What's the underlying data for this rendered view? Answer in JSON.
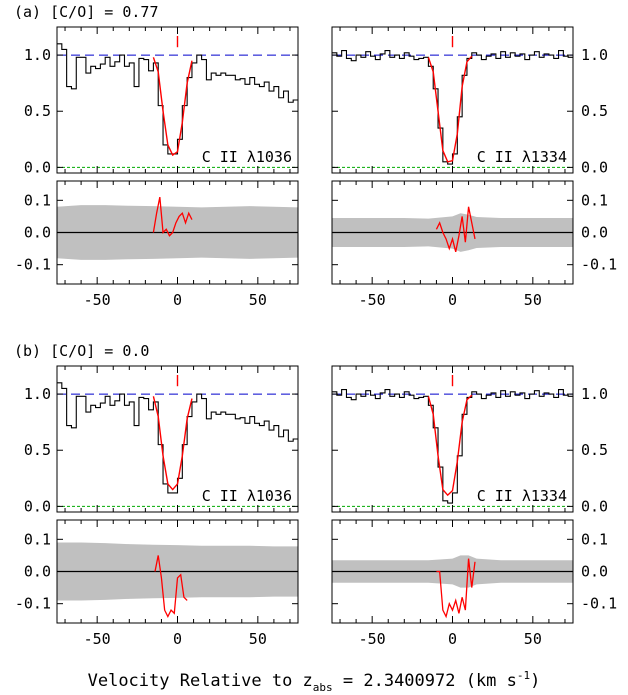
{
  "figure": {
    "xlabel_main": "Velocity Relative to z",
    "xlabel_sub": "abs",
    "xlabel_tail": " = 2.3400972 (km s",
    "xlabel_sup": "-1",
    "xlabel_close": ")",
    "colors": {
      "data": "#000000",
      "model": "#ff0000",
      "continuum": "#0000cc",
      "zero_level": "#00aa00",
      "error_band": "#c0c0c0"
    }
  },
  "chart_data": [
    {
      "id": "a",
      "label": "(a) [C/O] = 0.77",
      "panels": [
        {
          "type": "line",
          "kind": "spectrum",
          "line_label": "C II λ1036",
          "xlim": [
            -75,
            75
          ],
          "ylim": [
            -0.05,
            1.25
          ],
          "yticks": [
            0.0,
            0.5,
            1.0
          ],
          "ytick_labels": [
            "0.0",
            "0.5",
            "1.0"
          ],
          "ytick_side": "left",
          "x_step": [
            -75,
            -72,
            -69,
            -66,
            -63,
            -60,
            -57,
            -54,
            -51,
            -48,
            -45,
            -42,
            -39,
            -36,
            -33,
            -30,
            -27,
            -24,
            -21,
            -18,
            -15,
            -12,
            -9,
            -6,
            -3,
            0,
            3,
            6,
            9,
            12,
            15,
            18,
            21,
            24,
            27,
            30,
            33,
            36,
            39,
            42,
            45,
            48,
            51,
            54,
            57,
            60,
            63,
            66,
            69,
            72,
            75
          ],
          "flux": [
            1.1,
            1.05,
            0.72,
            0.7,
            0.98,
            0.98,
            0.84,
            0.9,
            0.88,
            0.92,
            0.98,
            0.9,
            0.94,
            1.0,
            0.9,
            0.93,
            0.72,
            0.97,
            0.96,
            0.86,
            0.93,
            0.55,
            0.2,
            0.12,
            0.12,
            0.25,
            0.55,
            0.8,
            0.93,
            1.0,
            0.96,
            0.78,
            0.84,
            0.82,
            0.84,
            0.82,
            0.82,
            0.78,
            0.79,
            0.74,
            0.8,
            0.74,
            0.72,
            0.76,
            0.68,
            0.72,
            0.62,
            0.68,
            0.58,
            0.6
          ],
          "model_x": [
            -15,
            -12,
            -9,
            -6,
            -3,
            0,
            3,
            6,
            9
          ],
          "model_y": [
            0.98,
            0.85,
            0.5,
            0.2,
            0.11,
            0.14,
            0.4,
            0.75,
            0.95
          ],
          "marker_x": 0
        },
        {
          "type": "line",
          "kind": "spectrum",
          "line_label": "C II λ1334",
          "xlim": [
            -75,
            75
          ],
          "ylim": [
            -0.05,
            1.25
          ],
          "yticks": [
            0.0,
            0.5,
            1.0
          ],
          "ytick_labels": [
            "0.0",
            "0.5",
            "1.0"
          ],
          "ytick_side": "right",
          "x_step": [
            -75,
            -72,
            -69,
            -66,
            -63,
            -60,
            -57,
            -54,
            -51,
            -48,
            -45,
            -42,
            -39,
            -36,
            -33,
            -30,
            -27,
            -24,
            -21,
            -18,
            -15,
            -12,
            -9,
            -6,
            -3,
            0,
            3,
            6,
            9,
            12,
            15,
            18,
            21,
            24,
            27,
            30,
            33,
            36,
            39,
            42,
            45,
            48,
            51,
            54,
            57,
            60,
            63,
            66,
            69,
            72,
            75
          ],
          "flux": [
            1.02,
            0.99,
            1.04,
            0.97,
            0.95,
            1.0,
            0.98,
            1.03,
            0.99,
            0.96,
            1.01,
            1.04,
            0.98,
            1.0,
            0.97,
            1.02,
            0.99,
            0.96,
            0.97,
            0.98,
            0.9,
            0.7,
            0.35,
            0.05,
            0.03,
            0.12,
            0.45,
            0.82,
            0.97,
            1.02,
            1.0,
            0.96,
            0.99,
            1.01,
            0.97,
            1.03,
            0.98,
            1.02,
            0.99,
            1.01,
            0.96,
            1.0,
            1.03,
            0.98,
            1.01,
            1.0,
            0.97,
            1.04,
            0.99,
            0.98
          ],
          "model_x": [
            -15,
            -12,
            -9,
            -6,
            -3,
            0,
            3,
            6,
            9,
            12
          ],
          "model_y": [
            0.98,
            0.85,
            0.5,
            0.15,
            0.05,
            0.06,
            0.3,
            0.72,
            0.94,
            0.99
          ],
          "marker_x": 0
        },
        {
          "type": "area",
          "kind": "residual",
          "xlim": [
            -75,
            75
          ],
          "ylim": [
            -0.16,
            0.16
          ],
          "yticks": [
            -0.1,
            0.0,
            0.1
          ],
          "ytick_labels": [
            "-0.1",
            "0.0",
            "0.1"
          ],
          "ytick_side": "left",
          "xticks": [
            -50,
            0,
            50
          ],
          "xtick_labels": [
            "-50",
            "0",
            "50"
          ],
          "band_x": [
            -75,
            -60,
            -45,
            -30,
            -15,
            0,
            15,
            30,
            45,
            60,
            75
          ],
          "band_half": [
            0.08,
            0.085,
            0.085,
            0.083,
            0.082,
            0.08,
            0.078,
            0.08,
            0.082,
            0.08,
            0.078
          ],
          "resid_x": [
            -15,
            -13,
            -11,
            -9,
            -7,
            -5,
            -3,
            -1,
            1,
            3,
            5,
            7,
            9
          ],
          "resid_y": [
            0.0,
            0.06,
            0.11,
            0.0,
            0.01,
            -0.01,
            0.0,
            0.03,
            0.05,
            0.06,
            0.03,
            0.06,
            0.04
          ]
        },
        {
          "type": "area",
          "kind": "residual",
          "xlim": [
            -75,
            75
          ],
          "ylim": [
            -0.16,
            0.16
          ],
          "yticks": [
            -0.1,
            0.0,
            0.1
          ],
          "ytick_labels": [
            "-0.1",
            "0.0",
            "0.1"
          ],
          "ytick_side": "right",
          "xticks": [
            -50,
            0,
            50
          ],
          "xtick_labels": [
            "-50",
            "0",
            "50"
          ],
          "band_x": [
            -75,
            -60,
            -45,
            -30,
            -15,
            0,
            5,
            10,
            15,
            30,
            45,
            60,
            75
          ],
          "band_half": [
            0.045,
            0.045,
            0.045,
            0.045,
            0.043,
            0.05,
            0.06,
            0.055,
            0.048,
            0.045,
            0.045,
            0.045,
            0.045
          ],
          "resid_x": [
            -10,
            -8,
            -6,
            -4,
            -2,
            0,
            2,
            4,
            6,
            8,
            10,
            12,
            14
          ],
          "resid_y": [
            0.01,
            0.03,
            0.0,
            -0.02,
            -0.05,
            -0.02,
            -0.06,
            -0.01,
            0.05,
            -0.03,
            0.08,
            0.03,
            -0.02
          ]
        }
      ]
    },
    {
      "id": "b",
      "label": "(b) [C/O] = 0.0",
      "panels": [
        {
          "type": "line",
          "kind": "spectrum",
          "line_label": "C II λ1036",
          "xlim": [
            -75,
            75
          ],
          "ylim": [
            -0.05,
            1.25
          ],
          "yticks": [
            0.0,
            0.5,
            1.0
          ],
          "ytick_labels": [
            "0.0",
            "0.5",
            "1.0"
          ],
          "ytick_side": "left",
          "x_step": [
            -75,
            -72,
            -69,
            -66,
            -63,
            -60,
            -57,
            -54,
            -51,
            -48,
            -45,
            -42,
            -39,
            -36,
            -33,
            -30,
            -27,
            -24,
            -21,
            -18,
            -15,
            -12,
            -9,
            -6,
            -3,
            0,
            3,
            6,
            9,
            12,
            15,
            18,
            21,
            24,
            27,
            30,
            33,
            36,
            39,
            42,
            45,
            48,
            51,
            54,
            57,
            60,
            63,
            66,
            69,
            72,
            75
          ],
          "flux": [
            1.1,
            1.05,
            0.72,
            0.7,
            0.98,
            0.98,
            0.84,
            0.9,
            0.88,
            0.92,
            0.98,
            0.9,
            0.94,
            1.0,
            0.9,
            0.93,
            0.72,
            0.97,
            0.96,
            0.86,
            0.93,
            0.55,
            0.2,
            0.12,
            0.12,
            0.25,
            0.55,
            0.8,
            0.93,
            1.0,
            0.96,
            0.78,
            0.84,
            0.82,
            0.84,
            0.82,
            0.82,
            0.78,
            0.79,
            0.74,
            0.8,
            0.74,
            0.72,
            0.76,
            0.68,
            0.72,
            0.62,
            0.68,
            0.58,
            0.6
          ],
          "model_x": [
            -15,
            -12,
            -9,
            -6,
            -3,
            0,
            3,
            6,
            9
          ],
          "model_y": [
            0.98,
            0.8,
            0.45,
            0.2,
            0.15,
            0.2,
            0.45,
            0.78,
            0.96
          ],
          "marker_x": 0
        },
        {
          "type": "line",
          "kind": "spectrum",
          "line_label": "C II λ1334",
          "xlim": [
            -75,
            75
          ],
          "ylim": [
            -0.05,
            1.25
          ],
          "yticks": [
            0.0,
            0.5,
            1.0
          ],
          "ytick_labels": [
            "0.0",
            "0.5",
            "1.0"
          ],
          "ytick_side": "right",
          "x_step": [
            -75,
            -72,
            -69,
            -66,
            -63,
            -60,
            -57,
            -54,
            -51,
            -48,
            -45,
            -42,
            -39,
            -36,
            -33,
            -30,
            -27,
            -24,
            -21,
            -18,
            -15,
            -12,
            -9,
            -6,
            -3,
            0,
            3,
            6,
            9,
            12,
            15,
            18,
            21,
            24,
            27,
            30,
            33,
            36,
            39,
            42,
            45,
            48,
            51,
            54,
            57,
            60,
            63,
            66,
            69,
            72,
            75
          ],
          "flux": [
            1.02,
            0.99,
            1.04,
            0.97,
            0.95,
            1.0,
            0.98,
            1.03,
            0.99,
            0.96,
            1.01,
            1.04,
            0.98,
            1.0,
            0.97,
            1.02,
            0.99,
            0.96,
            0.97,
            0.98,
            0.9,
            0.7,
            0.35,
            0.05,
            0.03,
            0.12,
            0.45,
            0.82,
            0.97,
            1.02,
            1.0,
            0.96,
            0.99,
            1.01,
            0.97,
            1.03,
            0.98,
            1.02,
            0.99,
            1.01,
            0.96,
            1.0,
            1.03,
            0.98,
            1.01,
            1.0,
            0.97,
            1.04,
            0.99,
            0.98
          ],
          "model_x": [
            -15,
            -12,
            -9,
            -6,
            -3,
            0,
            3,
            6,
            9,
            12
          ],
          "model_y": [
            0.98,
            0.82,
            0.45,
            0.15,
            0.1,
            0.14,
            0.4,
            0.75,
            0.95,
            0.99
          ],
          "marker_x": 0
        },
        {
          "type": "area",
          "kind": "residual",
          "xlim": [
            -75,
            75
          ],
          "ylim": [
            -0.16,
            0.16
          ],
          "yticks": [
            -0.1,
            0.0,
            0.1
          ],
          "ytick_labels": [
            "-0.1",
            "0.0",
            "0.1"
          ],
          "ytick_side": "left",
          "xticks": [
            -50,
            0,
            50
          ],
          "xtick_labels": [
            "-50",
            "0",
            "50"
          ],
          "band_x": [
            -75,
            -60,
            -45,
            -30,
            -15,
            0,
            15,
            30,
            45,
            60,
            75
          ],
          "band_half": [
            0.09,
            0.09,
            0.088,
            0.085,
            0.083,
            0.082,
            0.08,
            0.08,
            0.08,
            0.078,
            0.078
          ],
          "resid_x": [
            -14,
            -12,
            -10,
            -8,
            -6,
            -4,
            -2,
            0,
            2,
            4,
            6
          ],
          "resid_y": [
            0.0,
            0.05,
            -0.02,
            -0.12,
            -0.14,
            -0.12,
            -0.13,
            -0.02,
            -0.01,
            -0.08,
            -0.09
          ]
        },
        {
          "type": "area",
          "kind": "residual",
          "xlim": [
            -75,
            75
          ],
          "ylim": [
            -0.16,
            0.16
          ],
          "yticks": [
            -0.1,
            0.0,
            0.1
          ],
          "ytick_labels": [
            "-0.1",
            "0.0",
            "0.1"
          ],
          "ytick_side": "right",
          "xticks": [
            -50,
            0,
            50
          ],
          "xtick_labels": [
            "-50",
            "0",
            "50"
          ],
          "band_x": [
            -75,
            -60,
            -45,
            -30,
            -15,
            0,
            5,
            10,
            15,
            30,
            45,
            60,
            75
          ],
          "band_half": [
            0.035,
            0.035,
            0.035,
            0.035,
            0.035,
            0.04,
            0.05,
            0.05,
            0.04,
            0.035,
            0.035,
            0.035,
            0.035
          ],
          "resid_x": [
            -10,
            -8,
            -6,
            -4,
            -2,
            0,
            2,
            4,
            6,
            8,
            10,
            12,
            14
          ],
          "resid_y": [
            0.0,
            0.0,
            -0.12,
            -0.14,
            -0.1,
            -0.12,
            -0.09,
            -0.13,
            -0.08,
            -0.12,
            0.04,
            -0.05,
            0.03
          ]
        }
      ]
    }
  ]
}
